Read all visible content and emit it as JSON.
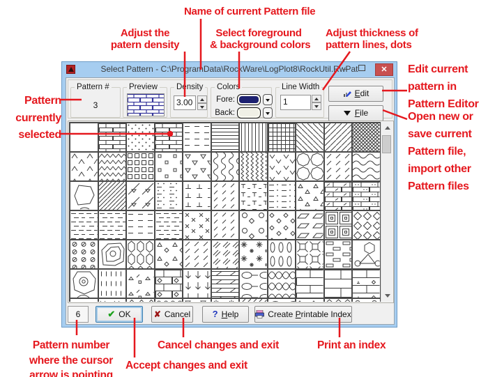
{
  "window": {
    "title": "Select Pattern - C:\\ProgramData\\RockWare\\LogPlot8\\RockUtil.RwPat",
    "app_icon": "rockware-logo",
    "caption_buttons": [
      "minimize",
      "maximize",
      "close"
    ]
  },
  "controls": {
    "pattern_number": {
      "label": "Pattern #",
      "value": "3"
    },
    "preview": {
      "label": "Preview",
      "pattern": "brick",
      "line_color": "#34349b"
    },
    "density": {
      "label": "Density",
      "value": "3.00"
    },
    "colors": {
      "label": "Colors",
      "fore_label": "Fore:",
      "fore_color": "#1d2170",
      "back_label": "Back:",
      "back_color": "#f0f0e6"
    },
    "line_width": {
      "label": "Line Width",
      "value": "1"
    },
    "edit_button": {
      "label": "Edit",
      "underline": "E"
    },
    "file_button": {
      "label": "File",
      "underline": "F"
    }
  },
  "status": {
    "cursor_pattern_number": "6",
    "ok_label": "OK",
    "cancel_label": "Cancel",
    "help_label": "Help",
    "create_index_label": "Create Printable Index"
  },
  "underlines": {
    "edit-button": "E",
    "file-button": "F",
    "help-button": "H",
    "create-index-button": "P"
  },
  "grid": {
    "columns": 11,
    "visible_rows": 6,
    "selected_cell": {
      "row": 0,
      "col": 3
    },
    "rows": [
      [
        "blank",
        "brick",
        "dots",
        "brick",
        "dashrows",
        "hlines",
        "vlines",
        "grid",
        "diagbs",
        "diagfs",
        "weave"
      ],
      [
        "chevrons",
        "zigzagh",
        "sqgrid",
        "sqscatter",
        "tridown",
        "squigglev",
        "zigzagv",
        "vees",
        "octagons",
        "diagdash",
        "waves"
      ],
      [
        "blob",
        "shingles",
        "diagtri",
        "dotdash",
        "tees",
        "ticks",
        "tdash",
        "dashdot",
        "triup",
        "bricktick",
        "brickdot"
      ],
      [
        "brickdash",
        "brickdash",
        "dashrows",
        "brickdash",
        "xs",
        "ticks",
        "rocks",
        "diamonds",
        "paras",
        "concsq",
        "dialat"
      ],
      [
        "shells",
        "contours",
        "hexoval",
        "tridia",
        "diagdash",
        "dblslash",
        "asterisks",
        "ovalcols",
        "hooksq",
        "rectrows",
        "hextri"
      ],
      [
        "conccircle",
        "vdash",
        "trislash",
        "brickdia",
        "arrowsdown",
        "ledger",
        "chain",
        "ogee",
        "bricklarge",
        "bricksparse",
        "brickmarks"
      ]
    ],
    "partial_row": [
      "blank",
      "vees",
      "dialat",
      "ogee",
      "tridown",
      "asterisks",
      "diagfs",
      "chain",
      "diamonds",
      "hexoval",
      "rocks"
    ]
  },
  "annotations": {
    "pattern_file": "Name of current Pattern file",
    "density": [
      "Adjust the",
      "patern density"
    ],
    "colors": [
      "Select foreground",
      "& background colors"
    ],
    "thickness": [
      "Adjust thickness of",
      "pattern lines, dots"
    ],
    "edit": [
      "Edit current",
      "pattern in",
      "Pattern Editor"
    ],
    "file_menu": [
      "Open new or",
      "save current",
      "Pattern file,",
      "import other",
      "Pattern files"
    ],
    "selected": [
      "Pattern",
      "currently",
      "selected"
    ],
    "pattern_number": [
      "Pattern number",
      "where the cursor",
      "arrow is pointing"
    ],
    "accept": "Accept changes and exit",
    "cancel": "Cancel changes and exit",
    "print": "Print an index"
  },
  "palette": {
    "annotation_red": "#e5181e",
    "titlebar_blue": "#a6cdf0",
    "close_red": "#c85050",
    "dialog_face": "#f0f0f0"
  }
}
